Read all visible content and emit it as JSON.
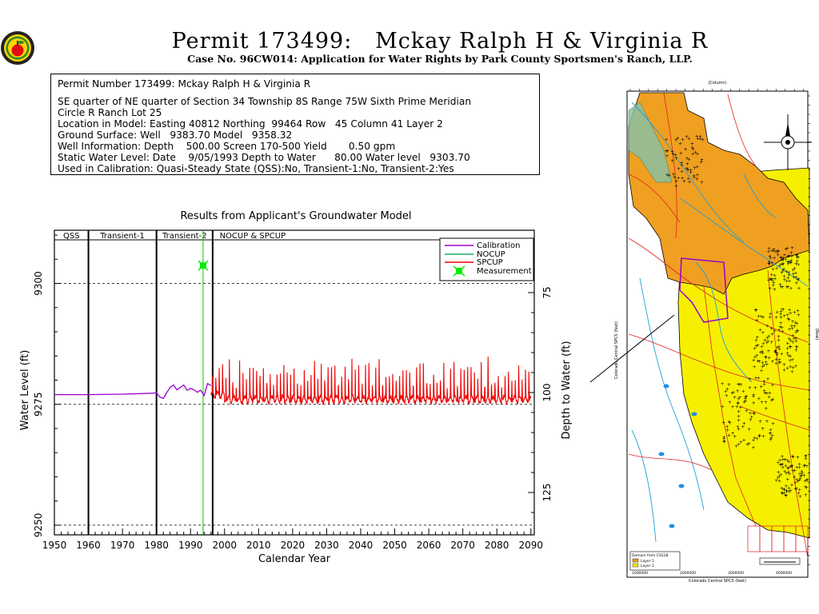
{
  "page": {
    "title": "Permit 173499:   Mckay Ralph H & Virginia R",
    "subtitle": "Case No. 96CW014: Application for Water Rights by Park County Sportsmen's Ranch, LLP."
  },
  "info_box": {
    "lines": [
      "Permit Number 173499: Mckay Ralph H & Virginia R",
      "SE quarter of NE quarter of Section 34 Township 8S Range 75W Sixth Prime Meridian",
      "Circle R Ranch Lot 25",
      "Location in Model: Easting 40812 Northing  99464 Row   45 Column 41 Layer 2",
      "Ground Surface: Well   9383.70 Model   9358.32",
      "Well Information: Depth    500.00 Screen 170-500 Yield       0.50 gpm",
      "Static Water Level: Date    9/05/1993 Depth to Water      80.00 Water level   9303.70",
      "Used in Calibration: Quasi-Steady State (QSS):No, Transient-1:No, Transient-2:Yes"
    ]
  },
  "chart_data": {
    "type": "line",
    "title": "Results from Applicant's Groundwater Model",
    "xlabel": "Calendar Year",
    "ylabel": "Water Level (ft)",
    "y2label": "Depth to Water (ft)",
    "xlim": [
      1950,
      2091
    ],
    "ylim": [
      9248,
      9311
    ],
    "y2_ticks": [
      "75",
      "100",
      "125"
    ],
    "x_ticks": [
      "1950",
      "1960",
      "1970",
      "1980",
      "1990",
      "2000",
      "2010",
      "2020",
      "2030",
      "2040",
      "2050",
      "2060",
      "2070",
      "2080",
      "2090"
    ],
    "y_ticks": [
      "9250",
      "9275",
      "9300"
    ],
    "periods": [
      {
        "label": "QSS",
        "start": 1950,
        "end": 1960
      },
      {
        "label": "Transient-1",
        "start": 1960,
        "end": 1980
      },
      {
        "label": "Transient-2",
        "start": 1980,
        "end": 1996.5
      },
      {
        "label": "NOCUP  &  SPCUP",
        "start": 1996.5,
        "end": 2091
      }
    ],
    "grid": "dashed horizontal at 9250, 9275, 9300",
    "legend_position": "top-right",
    "series": [
      {
        "name": "Calibration",
        "color": "#9900cc",
        "points": [
          [
            1950,
            9277.0
          ],
          [
            1960,
            9277.0
          ],
          [
            1970,
            9277.1
          ],
          [
            1979,
            9277.3
          ],
          [
            1980,
            9277.4
          ],
          [
            1981,
            9276.5
          ],
          [
            1982,
            9276.2
          ],
          [
            1983,
            9277.4
          ],
          [
            1984,
            9278.5
          ],
          [
            1985,
            9279.0
          ],
          [
            1986,
            9278.0
          ],
          [
            1987,
            9278.5
          ],
          [
            1988,
            9279.0
          ],
          [
            1989,
            9277.9
          ],
          [
            1990,
            9278.3
          ],
          [
            1991,
            9278.0
          ],
          [
            1992,
            9277.5
          ],
          [
            1993,
            9277.9
          ],
          [
            1994,
            9276.8
          ],
          [
            1995,
            9279.3
          ],
          [
            1996,
            9278.9
          ]
        ]
      },
      {
        "name": "NOCUP",
        "color": "#22aa66",
        "points": []
      },
      {
        "name": "SPCUP",
        "color": "#ee0000",
        "points": [],
        "generated": "oscillating 1996-2090, base 9276, spikes up to 9283"
      },
      {
        "name": "Measurement",
        "color": "#00ee00",
        "points": [
          [
            1993.7,
            9303.7
          ]
        ]
      }
    ],
    "marker_vertical_line_year": 1993.7
  },
  "map": {
    "top_axis_label": "(Column)",
    "left_axis_label": "Colorado Central SPCS (feet)",
    "right_axis_label": "(Row)",
    "bottom_axis_label": "Colorado Central SPCS (feet)",
    "legend_title": "Domain from CSS18",
    "legend_items": [
      {
        "label": "Layer 1",
        "color": "#f0a020"
      },
      {
        "label": "Layer 2",
        "color": "#f6f000"
      }
    ],
    "x_ticks": [
      "1000000",
      "2000000",
      "3000000",
      "4000000"
    ]
  },
  "colors": {
    "accent_red": "#ee0000",
    "accent_purple": "#9900cc",
    "layer1_orange": "#f0a020",
    "layer2_yellow": "#f6f000"
  }
}
